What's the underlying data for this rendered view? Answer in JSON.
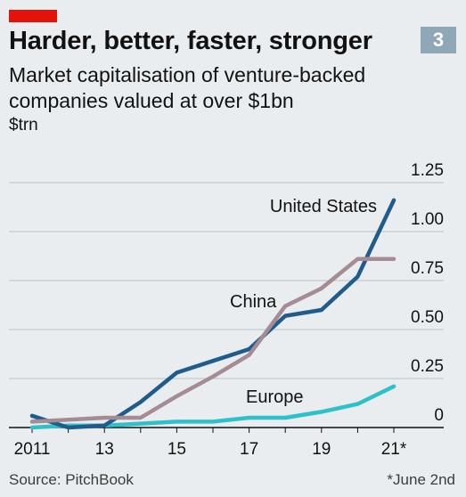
{
  "header": {
    "title": "Harder, better, faster, stronger",
    "subtitle": "Market capitalisation of venture-backed companies valued at over $1bn",
    "unit": "$trn",
    "badge": "3"
  },
  "footer": {
    "source": "Source: PitchBook",
    "footnote": "*June 2nd"
  },
  "colors": {
    "background": "#e9edf0",
    "accent": "#e3120b",
    "badge": "#90a7b7",
    "grid": "#b7c3cc"
  },
  "chart_data": {
    "type": "line",
    "title": "Harder, better, faster, stronger",
    "ylabel": "$trn",
    "ylim": [
      0,
      1.25
    ],
    "yticks": [
      0,
      0.25,
      0.5,
      0.75,
      1.0,
      1.25
    ],
    "ytick_labels": [
      "0",
      "0.25",
      "0.50",
      "0.75",
      "1.00",
      "1.25"
    ],
    "xlim": [
      2011,
      2021.45
    ],
    "xticks": [
      2011,
      2013,
      2015,
      2017,
      2019,
      2021
    ],
    "xtick_labels": [
      "2011",
      "13",
      "15",
      "17",
      "19",
      "21*"
    ],
    "grid": true,
    "legend": "inline labels",
    "x": [
      2011,
      2012,
      2013,
      2014,
      2015,
      2016,
      2017,
      2018,
      2019,
      2020,
      2021
    ],
    "series": [
      {
        "name": "United States",
        "color": "#1f5c8c",
        "values": [
          0.06,
          0.0,
          0.01,
          0.13,
          0.28,
          0.34,
          0.4,
          0.57,
          0.6,
          0.77,
          1.16
        ]
      },
      {
        "name": "China",
        "color": "#a58c94",
        "values": [
          0.03,
          0.04,
          0.05,
          0.05,
          0.16,
          0.26,
          0.37,
          0.62,
          0.71,
          0.86,
          0.86
        ]
      },
      {
        "name": "Europe",
        "color": "#2fc1c9",
        "values": [
          0.0,
          0.01,
          0.01,
          0.02,
          0.03,
          0.03,
          0.05,
          0.05,
          0.08,
          0.12,
          0.21
        ]
      }
    ]
  }
}
